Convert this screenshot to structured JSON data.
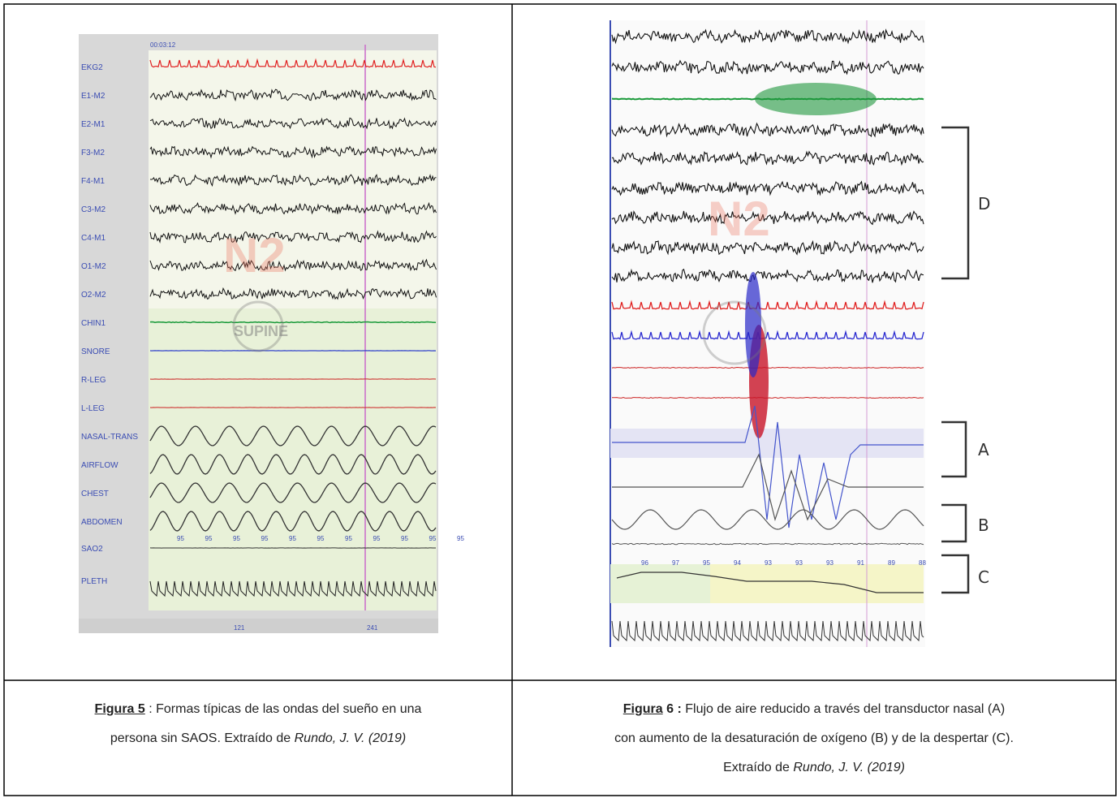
{
  "figure5": {
    "channels": [
      "EKG2",
      "E1-M2",
      "E2-M1",
      "F3-M2",
      "F4-M1",
      "C3-M2",
      "C4-M1",
      "O1-M2",
      "O2-M2",
      "CHIN1",
      "SNORE",
      "R-LEG",
      "L-LEG",
      "NASAL-TRANS",
      "AIRFLOW",
      "CHEST",
      "ABDOMEN",
      "SAO2",
      "PLETH"
    ],
    "spo2": [
      "95",
      "95",
      "95",
      "95",
      "95",
      "95",
      "95",
      "95",
      "95",
      "95",
      "95"
    ],
    "watermarks": [
      "N2",
      "SUPINE"
    ],
    "times": [
      "00:03:12",
      "121",
      "241"
    ]
  },
  "figure6": {
    "brackets": [
      "D",
      "A",
      "B",
      "C"
    ],
    "spo2": [
      "96",
      "97",
      "95",
      "94",
      "93",
      "93",
      "93",
      "91",
      "89",
      "88"
    ],
    "watermark": "N2"
  },
  "captions": [
    {
      "label": "Figura 5",
      "lines": [
        " : Formas típicas de las ondas del sueño en una",
        "persona sin SAOS. Extraído de "
      ],
      "source": "Rundo, J. V. (2019)"
    },
    {
      "label": "Figura",
      "number": " 6 :",
      "lines": [
        " Flujo de aire reducido a través del transductor nasal (A)",
        "con aumento de la desaturación de oxígeno (B) y de la despertar  (C).",
        "Extraído de "
      ],
      "source": "Rundo, J. V. (2019)"
    }
  ]
}
